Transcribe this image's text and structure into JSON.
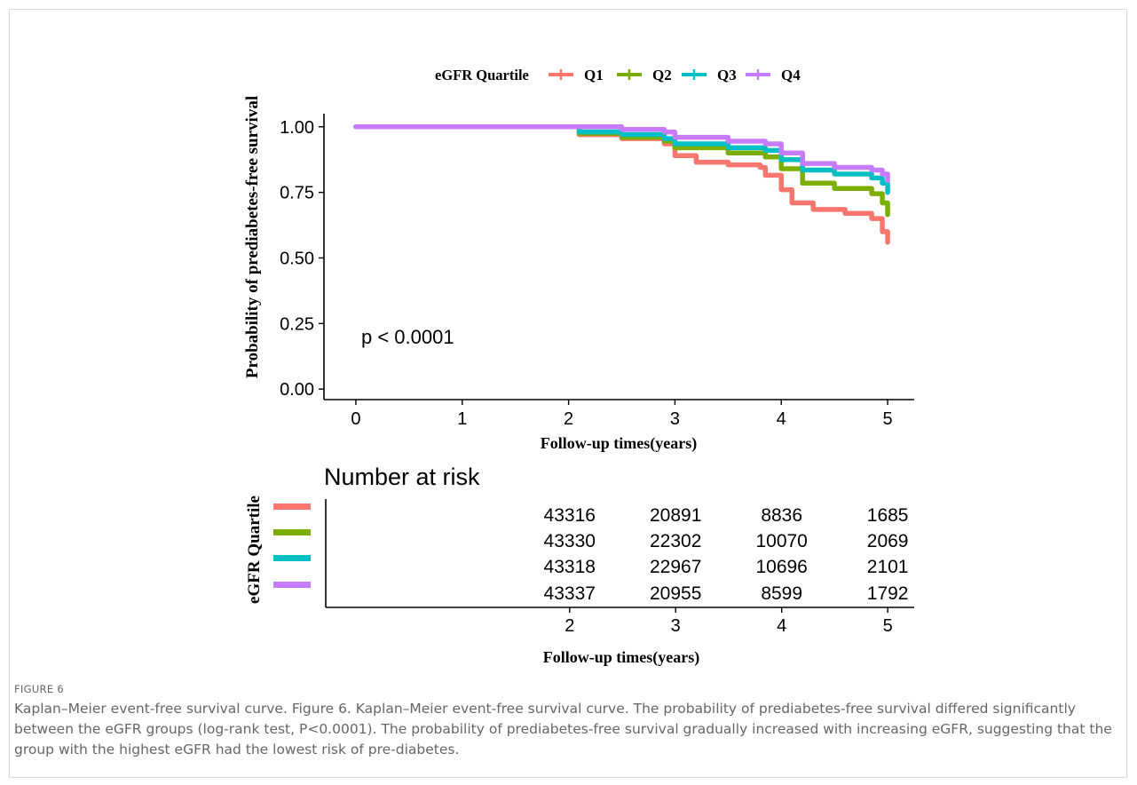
{
  "figure": {
    "label": "FIGURE 6",
    "caption": "Kaplan–Meier event-free survival curve. Figure 6. Kaplan–Meier event-free survival curve. The probability of prediabetes-free survival differed significantly between the eGFR groups (log-rank test, P<0.0001). The probability of prediabetes-free survival gradually increased with increasing eGFR, suggesting that the group with the highest eGFR had the lowest risk of pre-diabetes."
  },
  "chart_data": [
    {
      "type": "line",
      "title": "",
      "xlabel": "Follow-up times(years)",
      "ylabel": "Probability of prediabetes-free survival",
      "xlim": [
        -0.3,
        5.25
      ],
      "ylim": [
        -0.04,
        1.05
      ],
      "xticks": [
        0,
        1,
        2,
        3,
        4,
        5
      ],
      "yticks": [
        0.0,
        0.25,
        0.5,
        0.75,
        1.0
      ],
      "ytick_labels": [
        "0.00",
        "0.25",
        "0.50",
        "0.75",
        "1.00"
      ],
      "grid": false,
      "annotation": "p < 0.0001",
      "legend": {
        "title": "eGFR Quartile",
        "placement": "top",
        "labels": [
          "Q1",
          "Q2",
          "Q3",
          "Q4"
        ]
      },
      "series": [
        {
          "name": "Q1",
          "color": "#F8766D",
          "x": [
            0,
            2.0,
            2.1,
            2.5,
            2.9,
            3.0,
            3.2,
            3.5,
            3.8,
            3.85,
            4.0,
            4.1,
            4.3,
            4.6,
            4.85,
            4.95,
            5.0
          ],
          "y": [
            1.0,
            1.0,
            0.97,
            0.955,
            0.935,
            0.89,
            0.865,
            0.855,
            0.845,
            0.815,
            0.76,
            0.71,
            0.685,
            0.67,
            0.65,
            0.6,
            0.56
          ]
        },
        {
          "name": "Q2",
          "color": "#7CAE00",
          "x": [
            0,
            2.0,
            2.1,
            2.5,
            2.9,
            3.0,
            3.5,
            3.85,
            4.0,
            4.2,
            4.5,
            4.85,
            4.95,
            5.0
          ],
          "y": [
            1.0,
            1.0,
            0.975,
            0.96,
            0.945,
            0.92,
            0.9,
            0.885,
            0.84,
            0.785,
            0.765,
            0.745,
            0.71,
            0.665
          ]
        },
        {
          "name": "Q3",
          "color": "#00BFC4",
          "x": [
            0,
            2.0,
            2.1,
            2.5,
            2.9,
            3.0,
            3.5,
            3.85,
            4.0,
            4.2,
            4.5,
            4.85,
            4.95,
            5.0
          ],
          "y": [
            1.0,
            1.0,
            0.98,
            0.97,
            0.955,
            0.935,
            0.92,
            0.91,
            0.875,
            0.835,
            0.82,
            0.805,
            0.785,
            0.75
          ]
        },
        {
          "name": "Q4",
          "color": "#C77CFF",
          "x": [
            0,
            2.0,
            2.05,
            2.5,
            2.9,
            3.0,
            3.5,
            3.85,
            4.0,
            4.2,
            4.5,
            4.85,
            4.95,
            5.0
          ],
          "y": [
            1.0,
            1.0,
            1.0,
            0.99,
            0.98,
            0.96,
            0.945,
            0.935,
            0.9,
            0.86,
            0.845,
            0.835,
            0.82,
            0.795
          ]
        }
      ]
    },
    {
      "type": "table",
      "title": "Number at risk",
      "xlabel": "Follow-up times(years)",
      "ylabel": "eGFR Quartile",
      "xticks": [
        2,
        3,
        4,
        5
      ],
      "rows": [
        {
          "group": "Q1",
          "color": "#F8766D",
          "values": [
            43316,
            20891,
            8836,
            1685
          ]
        },
        {
          "group": "Q2",
          "color": "#7CAE00",
          "values": [
            43330,
            22302,
            10070,
            2069
          ]
        },
        {
          "group": "Q3",
          "color": "#00BFC4",
          "values": [
            43318,
            22967,
            10696,
            2101
          ]
        },
        {
          "group": "Q4",
          "color": "#C77CFF",
          "values": [
            43337,
            20955,
            8599,
            1792
          ]
        }
      ]
    }
  ]
}
